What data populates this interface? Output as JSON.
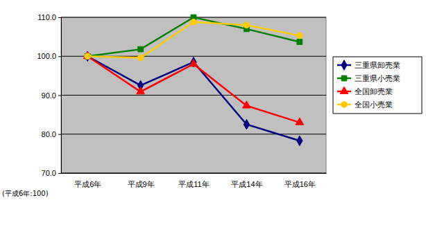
{
  "chart_data": {
    "type": "line",
    "note": "(平成6年:100)",
    "categories": [
      "平成6年",
      "平成9年",
      "平成11年",
      "平成14年",
      "平成16年"
    ],
    "series": [
      {
        "name": "三重県卸売業",
        "color": "#000080",
        "marker": "diamond",
        "values": [
          100,
          92.5,
          98.5,
          82.5,
          78.3
        ]
      },
      {
        "name": "三重県小売業",
        "color": "#008000",
        "marker": "square",
        "values": [
          100,
          101.8,
          110.0,
          107.0,
          103.7
        ]
      },
      {
        "name": "全国卸売業",
        "color": "#ff0000",
        "marker": "triangle",
        "values": [
          100,
          90.9,
          98.0,
          87.3,
          83.0
        ]
      },
      {
        "name": "全国小売業",
        "color": "#ffcc00",
        "marker": "circle",
        "values": [
          100,
          99.6,
          108.8,
          108.0,
          105.3
        ]
      }
    ],
    "ylim": [
      70,
      110
    ],
    "yticks": [
      {
        "value": 70,
        "label": "70.0"
      },
      {
        "value": 80,
        "label": "80.0"
      },
      {
        "value": 90,
        "label": "90.0"
      },
      {
        "value": 100,
        "label": "100.0"
      },
      {
        "value": 110,
        "label": "110.0"
      }
    ],
    "grid": true,
    "legend": "right"
  }
}
